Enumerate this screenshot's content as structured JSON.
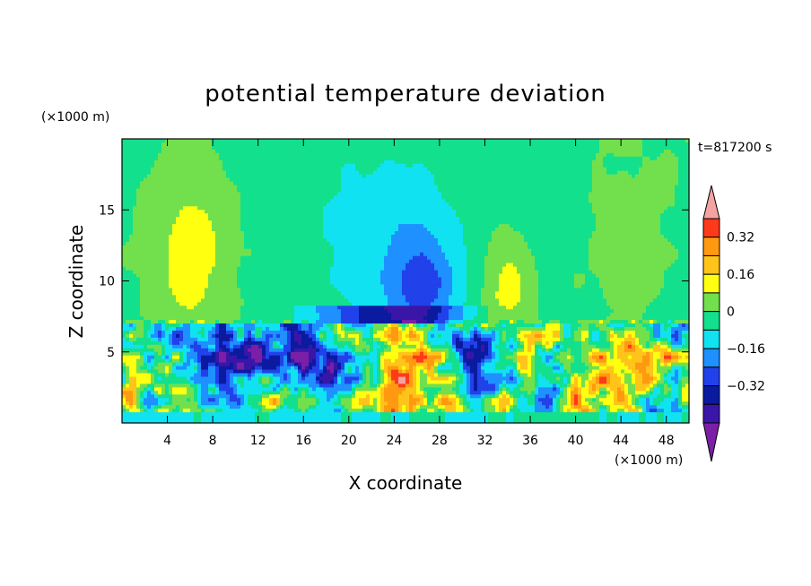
{
  "chart_data": {
    "type": "heatmap",
    "title": "potential temperature deviation",
    "xlabel": "X coordinate",
    "ylabel": "Z coordinate",
    "x_unit": "(×1000 m)",
    "y_unit": "(×1000 m)",
    "time_label": "t=817200 s",
    "xlim": [
      0,
      50
    ],
    "ylim": [
      0,
      20
    ],
    "x_ticks": [
      4,
      8,
      12,
      16,
      20,
      24,
      28,
      32,
      36,
      40,
      44,
      48
    ],
    "y_ticks": [
      5,
      10,
      15
    ],
    "colorbar": {
      "levels": [
        -0.48,
        -0.4,
        -0.32,
        -0.24,
        -0.16,
        -0.08,
        0,
        0.08,
        0.16,
        0.24,
        0.32,
        0.4,
        0.48
      ],
      "colors": [
        "#7a1fa6",
        "#3a16a8",
        "#0a1ba0",
        "#2141ea",
        "#1e90ff",
        "#11e2f2",
        "#13e08c",
        "#72e04c",
        "#ffff10",
        "#ffc41a",
        "#ff9a10",
        "#ff3a1a",
        "#f5a2a2"
      ],
      "tick_labels": [
        "0.32",
        "0.16",
        "0",
        "−0.16",
        "−0.32"
      ],
      "tick_values": [
        0.32,
        0.16,
        0,
        -0.16,
        -0.32
      ],
      "extend": "both"
    }
  }
}
